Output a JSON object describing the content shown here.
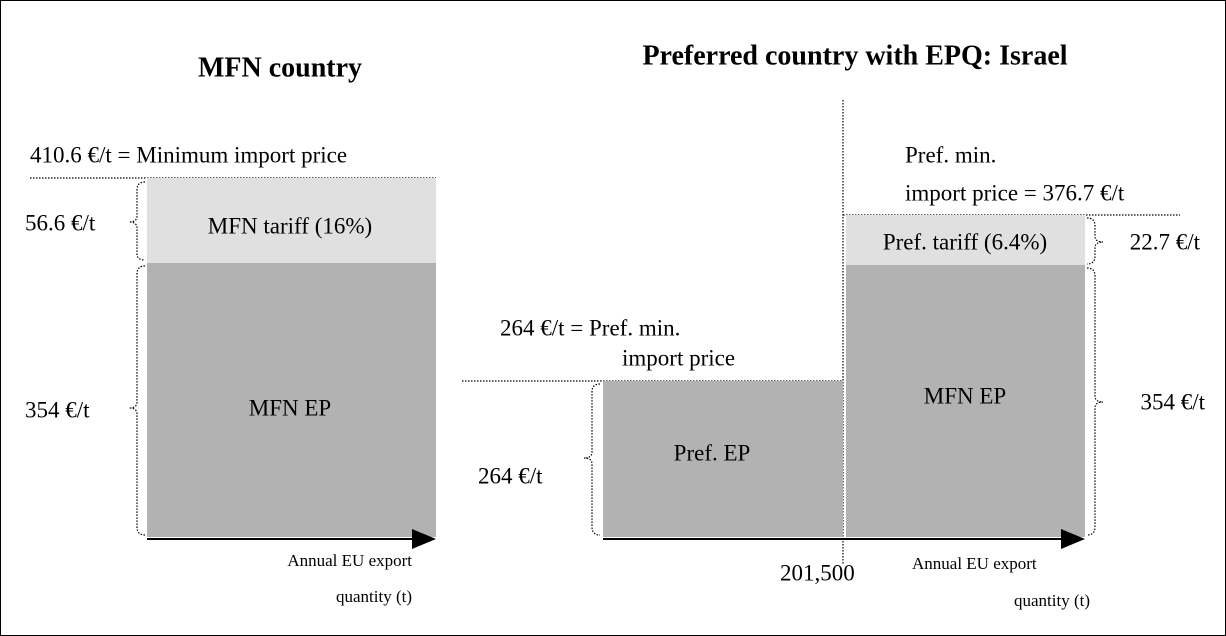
{
  "left": {
    "title": "MFN country",
    "min_price_label": "410.6 €/t = Minimum import price",
    "tariff_amount": "56.6 €/t",
    "tariff_box": "MFN tariff (16%)",
    "ep_amount": "354 €/t",
    "ep_box": "MFN EP",
    "axis_label": [
      "Annual EU export",
      "quantity (t)"
    ]
  },
  "right": {
    "title": "Preferred country with EPQ: Israel",
    "pref_min_price_label": [
      "Pref. min.",
      "import price = 376.7 €/t"
    ],
    "pref_price_label": [
      "264 €/t = Pref. min.",
      "import price"
    ],
    "pref_ep_amount": "264 €/t",
    "pref_ep_box": "Pref. EP",
    "tariff_box": "Pref. tariff (6.4%)",
    "tariff_amount": "22.7 €/t",
    "ep_box": "MFN EP",
    "ep_amount": "354 €/t",
    "quota": "201,500",
    "axis_label": [
      "Annual EU export",
      "quantity (t)"
    ]
  }
}
